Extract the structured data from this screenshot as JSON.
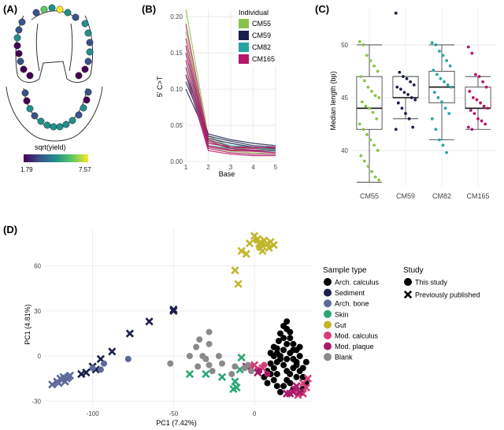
{
  "panels": {
    "a": {
      "label": "(A)",
      "legend_title": "sqrt(yield)",
      "scale_min": "1.79",
      "scale_max": "7.57",
      "colors": [
        "#440154",
        "#3b528b",
        "#21908c",
        "#5dc863",
        "#fde725"
      ]
    },
    "b": {
      "label": "(B)",
      "chart_data": {
        "type": "line",
        "xlabel": "Base",
        "ylabel": "5' C>T",
        "x": [
          1,
          2,
          3,
          4,
          5
        ],
        "xlim": [
          1,
          5
        ],
        "ylim": [
          0,
          0.21
        ],
        "yticks": [
          "0.00",
          "0.05",
          "0.10",
          "0.15",
          "0.20"
        ],
        "xticks": [
          "1",
          "2",
          "3",
          "4",
          "5"
        ],
        "legend_title": "Individual",
        "legend_position": "top-right",
        "series": [
          {
            "name": "CM55",
            "color": "#8bc34a",
            "lines": [
              [
                0.21,
                0.035,
                0.02,
                0.018,
                0.02
              ],
              [
                0.18,
                0.03,
                0.015,
                0.02,
                0.016
              ],
              [
                0.16,
                0.025,
                0.02,
                0.015,
                0.018
              ],
              [
                0.14,
                0.028,
                0.018,
                0.02,
                0.015
              ],
              [
                0.12,
                0.02,
                0.014,
                0.012,
                0.01
              ]
            ]
          },
          {
            "name": "CM59",
            "color": "#1a1f4b",
            "lines": [
              [
                0.12,
                0.038,
                0.03,
                0.025,
                0.022
              ],
              [
                0.11,
                0.035,
                0.028,
                0.022,
                0.02
              ],
              [
                0.1,
                0.032,
                0.025,
                0.02,
                0.018
              ]
            ]
          },
          {
            "name": "CM82",
            "color": "#26a6a0",
            "lines": [
              [
                0.15,
                0.03,
                0.022,
                0.02,
                0.017
              ],
              [
                0.13,
                0.025,
                0.02,
                0.018,
                0.016
              ],
              [
                0.12,
                0.022,
                0.018,
                0.015,
                0.014
              ]
            ]
          },
          {
            "name": "CM165",
            "color": "#b5176a",
            "lines": [
              [
                0.19,
                0.03,
                0.02,
                0.018,
                0.02
              ],
              [
                0.17,
                0.028,
                0.018,
                0.016,
                0.015
              ],
              [
                0.16,
                0.025,
                0.02,
                0.02,
                0.018
              ],
              [
                0.15,
                0.022,
                0.016,
                0.015,
                0.012
              ],
              [
                0.14,
                0.02,
                0.015,
                0.014,
                0.012
              ],
              [
                0.13,
                0.018,
                0.012,
                0.01,
                0.01
              ],
              [
                0.12,
                0.015,
                0.01,
                0.008,
                0.008
              ]
            ]
          }
        ]
      }
    },
    "c": {
      "label": "(C)",
      "chart_data": {
        "type": "box",
        "ylabel": "Median length (bp)",
        "ylim": [
          36.5,
          53.5
        ],
        "yticks": [
          "40",
          "45",
          "50"
        ],
        "categories": [
          "CM55",
          "CM59",
          "CM82",
          "CM165"
        ],
        "boxes": [
          {
            "name": "CM55",
            "color": "#8bc34a",
            "min": 37,
            "q1": 42,
            "median": 44,
            "q3": 47,
            "max": 50,
            "points": [
              50.3,
              50,
              49,
              48.5,
              48,
              47.5,
              47,
              46.6,
              46,
              45.6,
              45.2,
              45,
              44.6,
              44.2,
              44,
              43.6,
              43,
              42.5,
              42,
              41.5,
              41,
              40.5,
              40,
              39.5,
              39,
              38.5,
              38,
              37.5,
              37.2
            ]
          },
          {
            "name": "CM59",
            "color": "#1a1f4b",
            "min": 43,
            "q1": 45,
            "median": 45,
            "q3": 47,
            "max": 47,
            "outlier": 53,
            "points": [
              53,
              47.4,
              47,
              46.8,
              46.5,
              46.2,
              46,
              45.8,
              45.5,
              45.3,
              45,
              44.8,
              44.5,
              44,
              43.5,
              43,
              42.2,
              42
            ]
          },
          {
            "name": "CM82",
            "color": "#26a6a0",
            "min": 41,
            "q1": 44.5,
            "median": 46,
            "q3": 47.5,
            "max": 50,
            "points": [
              50.2,
              50,
              49.4,
              49,
              48.5,
              48,
              47.6,
              47.2,
              46.8,
              46.5,
              46.2,
              46,
              45.5,
              45,
              44.6,
              44,
              43.5,
              43,
              42,
              41,
              40.5,
              39.8
            ]
          },
          {
            "name": "CM165",
            "color": "#b5176a",
            "min": 42,
            "q1": 44,
            "median": 44,
            "q3": 46,
            "max": 47,
            "points": [
              49.8,
              49.2,
              47.2,
              47,
              46.5,
              46,
              45.6,
              45,
              44.8,
              44.5,
              44.2,
              44,
              43.8,
              43.5,
              43,
              42.8,
              42.5,
              42.2,
              42
            ]
          }
        ]
      }
    },
    "d": {
      "label": "(D)",
      "chart_data": {
        "type": "scatter",
        "xlabel": "PC1 (7.42%)",
        "ylabel": "PC1 (4.81%)",
        "xlim": [
          -130,
          35
        ],
        "ylim": [
          -33,
          85
        ],
        "xticks": [
          "-100",
          "-50",
          "0"
        ],
        "yticks": [
          "-30",
          "0",
          "30",
          "60"
        ],
        "legend_sample_title": "Sample type",
        "legend_study_title": "Study",
        "study_labels": [
          "This study",
          "Previously published"
        ],
        "groups": [
          {
            "name": "Arch. calculus",
            "color": "#000000",
            "this_study": [
              [
                8,
                -10
              ],
              [
                10,
                -5
              ],
              [
                12,
                0
              ],
              [
                14,
                5
              ],
              [
                15,
                10
              ],
              [
                16,
                15
              ],
              [
                18,
                20
              ],
              [
                20,
                23
              ],
              [
                20,
                18
              ],
              [
                22,
                12
              ],
              [
                24,
                8
              ],
              [
                26,
                4
              ],
              [
                28,
                0
              ],
              [
                26,
                -4
              ],
              [
                24,
                -8
              ],
              [
                22,
                -12
              ],
              [
                20,
                -16
              ],
              [
                18,
                -20
              ],
              [
                16,
                -24
              ],
              [
                14,
                -20
              ],
              [
                12,
                -16
              ],
              [
                10,
                -12
              ],
              [
                12,
                -8
              ],
              [
                14,
                -4
              ],
              [
                16,
                0
              ],
              [
                18,
                4
              ],
              [
                20,
                8
              ],
              [
                22,
                2
              ],
              [
                24,
                -2
              ],
              [
                26,
                -6
              ],
              [
                28,
                -10
              ],
              [
                30,
                -14
              ],
              [
                32,
                -18
              ],
              [
                30,
                -22
              ],
              [
                28,
                -25
              ],
              [
                24,
                -22
              ],
              [
                20,
                -10
              ],
              [
                18,
                -6
              ],
              [
                16,
                -2
              ],
              [
                14,
                2
              ],
              [
                12,
                6
              ],
              [
                10,
                2
              ],
              [
                22,
                -18
              ],
              [
                26,
                -14
              ],
              [
                30,
                -8
              ],
              [
                32,
                -4
              ],
              [
                6,
                -14
              ],
              [
                8,
                -18
              ],
              [
                28,
                6
              ],
              [
                18,
                12
              ],
              [
                22,
                16
              ],
              [
                14,
                -12
              ],
              [
                20,
                -2
              ],
              [
                24,
                4
              ]
            ],
            "published": []
          },
          {
            "name": "Sediment",
            "color": "#1a1f4b",
            "this_study": [],
            "published": [
              [
                -50,
                31
              ],
              [
                -50,
                30
              ],
              [
                -65,
                23
              ],
              [
                -77,
                15
              ],
              [
                -88,
                3
              ],
              [
                -95,
                -2
              ],
              [
                -100,
                -7
              ],
              [
                -104,
                -11
              ],
              [
                -107,
                -12
              ],
              [
                -98,
                -9
              ]
            ]
          },
          {
            "name": "Arch. bone",
            "color": "#5c6a9a",
            "this_study": [
              [
                -100,
                -8
              ],
              [
                -93,
                -5
              ],
              [
                -95,
                -9
              ],
              [
                -78,
                -2
              ]
            ],
            "published": [
              [
                -125,
                -19
              ],
              [
                -122,
                -17
              ],
              [
                -120,
                -15
              ],
              [
                -118,
                -14
              ],
              [
                -116,
                -15
              ],
              [
                -114,
                -13
              ],
              [
                -121,
                -18
              ],
              [
                -119,
                -16
              ],
              [
                -117,
                -17
              ],
              [
                -115,
                -14
              ]
            ]
          },
          {
            "name": "Skin",
            "color": "#2aa874",
            "this_study": [],
            "published": [
              [
                -8,
                -1
              ],
              [
                -9,
                -9
              ],
              [
                -12,
                -17
              ],
              [
                -20,
                -14
              ],
              [
                -40,
                -12
              ],
              [
                -30,
                -12
              ],
              [
                -11,
                -21
              ],
              [
                -13,
                -22
              ]
            ]
          },
          {
            "name": "Gut",
            "color": "#c2b72c",
            "this_study": [
              [
                1,
                77
              ],
              [
                5,
                74
              ],
              [
                3,
                72
              ]
            ],
            "published": [
              [
                0,
                80
              ],
              [
                2,
                78
              ],
              [
                6,
                77
              ],
              [
                8,
                75
              ],
              [
                10,
                76
              ],
              [
                12,
                74
              ],
              [
                9,
                72
              ],
              [
                5,
                70
              ],
              [
                3,
                75
              ],
              [
                -3,
                75
              ],
              [
                -8,
                70
              ],
              [
                -5,
                68
              ],
              [
                -12,
                57
              ],
              [
                -10,
                48
              ]
            ]
          },
          {
            "name": "Mod. calculus",
            "color": "#d63c78",
            "this_study": [
              [
                -2,
                -7
              ],
              [
                2,
                -9
              ],
              [
                6,
                -6
              ]
            ],
            "published": [
              [
                0,
                -6
              ],
              [
                5,
                -8
              ],
              [
                30,
                -25
              ],
              [
                25,
                -22
              ],
              [
                27,
                -26
              ],
              [
                32,
                -21
              ],
              [
                30,
                -18
              ],
              [
                33,
                -15
              ]
            ]
          },
          {
            "name": "Mod. plaque",
            "color": "#a8196a",
            "this_study": [
              [
                3,
                -10
              ],
              [
                8,
                -12
              ]
            ],
            "published": [
              [
                -5,
                -7
              ],
              [
                2,
                -11
              ],
              [
                22,
                -25
              ],
              [
                24,
                -24
              ],
              [
                28,
                -24
              ],
              [
                20,
                -25
              ],
              [
                26,
                -20
              ]
            ]
          },
          {
            "name": "Blank",
            "color": "#8a8a8a",
            "this_study": [
              [
                -28,
                16
              ],
              [
                -28,
                8
              ],
              [
                -34,
                11
              ],
              [
                -36,
                6
              ],
              [
                -32,
                0
              ],
              [
                -30,
                -2
              ],
              [
                -22,
                0
              ],
              [
                -28,
                -6
              ],
              [
                -52,
                -5
              ],
              [
                -40,
                0
              ],
              [
                -12,
                -7
              ],
              [
                -6,
                -8
              ],
              [
                -4,
                -6
              ],
              [
                -2,
                -10
              ],
              [
                -14,
                -12
              ],
              [
                -26,
                -10
              ],
              [
                -35,
                -7
              ],
              [
                -20,
                -5
              ]
            ],
            "published": []
          }
        ]
      }
    }
  }
}
